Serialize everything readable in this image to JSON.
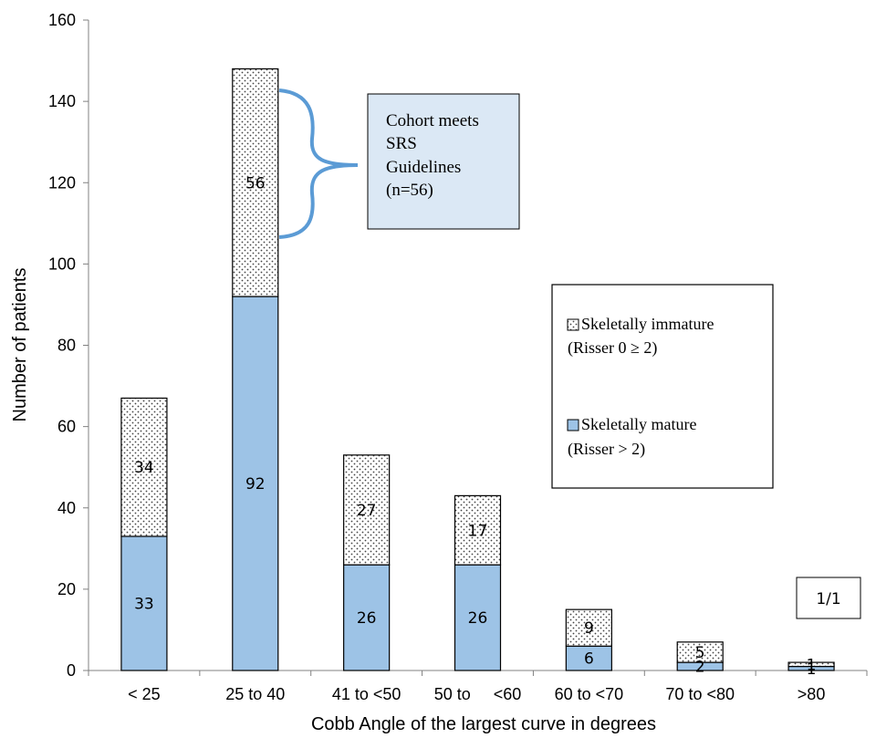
{
  "chart_data": {
    "type": "bar",
    "stacked": true,
    "categories": [
      "< 25",
      "25 to 40",
      "41 to <50",
      "50 to     <60",
      "60 to <70",
      "70 to <80",
      ">80"
    ],
    "series": [
      {
        "name": "Skeletally mature",
        "name_note": "(Risser > 2)",
        "values": [
          33,
          92,
          26,
          26,
          6,
          2,
          1
        ],
        "color": "#9dc3e6",
        "pattern": "solid"
      },
      {
        "name": "Skeletally immature",
        "name_note": "(Risser 0 ≥ 2)",
        "values": [
          34,
          56,
          27,
          17,
          9,
          5,
          1
        ],
        "color": "#ffffff",
        "pattern": "dotted"
      }
    ],
    "xlabel": "Cobb Angle of the largest curve in degrees",
    "ylabel": "Number of patients",
    "ylim": [
      0,
      160
    ],
    "yticks": [
      0,
      20,
      40,
      60,
      80,
      100,
      120,
      140,
      160
    ],
    "grid": false,
    "legend_position": "right",
    "annotation": {
      "lines": [
        "Cohort meets",
        "SRS",
        "Guidelines",
        "(n=56)"
      ],
      "target_category": "25 to 40",
      "fill": "#dbe8f5"
    }
  },
  "page_indicator": "1/1"
}
